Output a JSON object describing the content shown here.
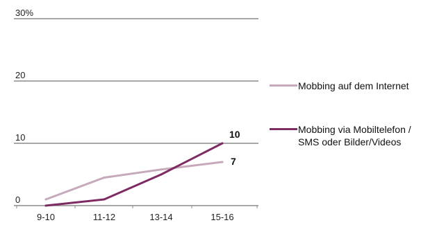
{
  "chart_data": {
    "type": "line",
    "categories": [
      "9-10",
      "11-12",
      "13-14",
      "15-16"
    ],
    "series": [
      {
        "name": "Mobbing auf dem Internet",
        "values": [
          1,
          4.5,
          5.8,
          7
        ],
        "color": "#c6a9bb"
      },
      {
        "name": "Mobbing via Mobiltelefon / SMS oder Bilder/Videos",
        "values": [
          0,
          1,
          5,
          10
        ],
        "color": "#7e2a63"
      }
    ],
    "ylim": [
      0,
      30
    ],
    "yticks": [
      {
        "value": 0,
        "label": "0"
      },
      {
        "value": 10,
        "label": "10"
      },
      {
        "value": 20,
        "label": "20"
      },
      {
        "value": 30,
        "label": "30%"
      }
    ],
    "data_labels": [
      {
        "series": 1,
        "category": "15-16",
        "label": "10"
      },
      {
        "series": 0,
        "category": "15-16",
        "label": "7"
      }
    ],
    "title": "",
    "xlabel": "",
    "ylabel": "",
    "grid": true,
    "legend_position": "right"
  },
  "legend": {
    "item1": "Mobbing auf dem Internet",
    "item2": "Mobbing via Mobiltelefon /\nSMS oder Bilder/Videos"
  }
}
